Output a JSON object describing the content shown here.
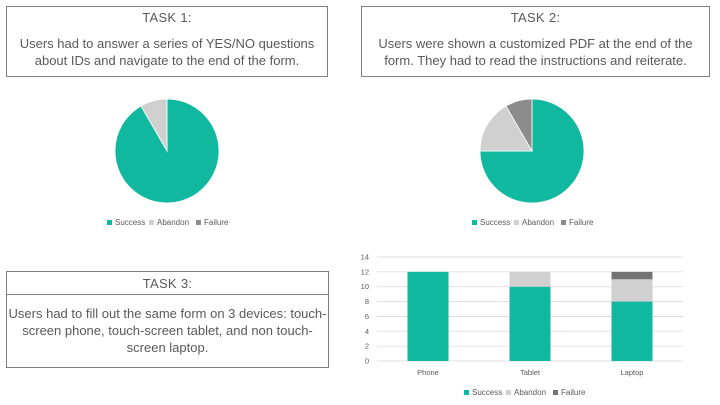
{
  "task1": {
    "title": "TASK 1:",
    "description": "Users had to answer a series of YES/NO questions about IDs and navigate to the end of the form."
  },
  "task2": {
    "title": "TASK 2:",
    "description": "Users were shown a customized PDF at the end of the form. They had to read the instructions and reiterate."
  },
  "task3": {
    "title": "TASK 3:",
    "description": "Users had to fill out the same form on 3 devices: touch-screen phone, touch-screen tablet, and non touch-screen laptop."
  },
  "colors": {
    "success": "#11b8a0",
    "abandon": "#d0d0d0",
    "failure": "#8c8c8c",
    "failure_bar": "#737373"
  },
  "chart_data": [
    {
      "type": "pie",
      "labels": [
        "Success",
        "Abandon",
        "Failure"
      ],
      "values": [
        11,
        1,
        0
      ],
      "legend": "bottom"
    },
    {
      "type": "pie",
      "labels": [
        "Success",
        "Abandon",
        "Failure"
      ],
      "values": [
        9,
        2,
        1
      ],
      "legend": "bottom"
    },
    {
      "type": "bar",
      "stacked": true,
      "categories": [
        "Phone",
        "Tablet",
        "Laptop"
      ],
      "series": [
        {
          "name": "Success",
          "values": [
            12,
            10,
            8
          ]
        },
        {
          "name": "Abandon",
          "values": [
            0,
            2,
            3
          ]
        },
        {
          "name": "Failure",
          "values": [
            0,
            0,
            1
          ]
        }
      ],
      "ylim": [
        0,
        14
      ],
      "yticks": [
        0,
        2,
        4,
        6,
        8,
        10,
        12,
        14
      ],
      "grid": true,
      "legend": "bottom"
    }
  ]
}
